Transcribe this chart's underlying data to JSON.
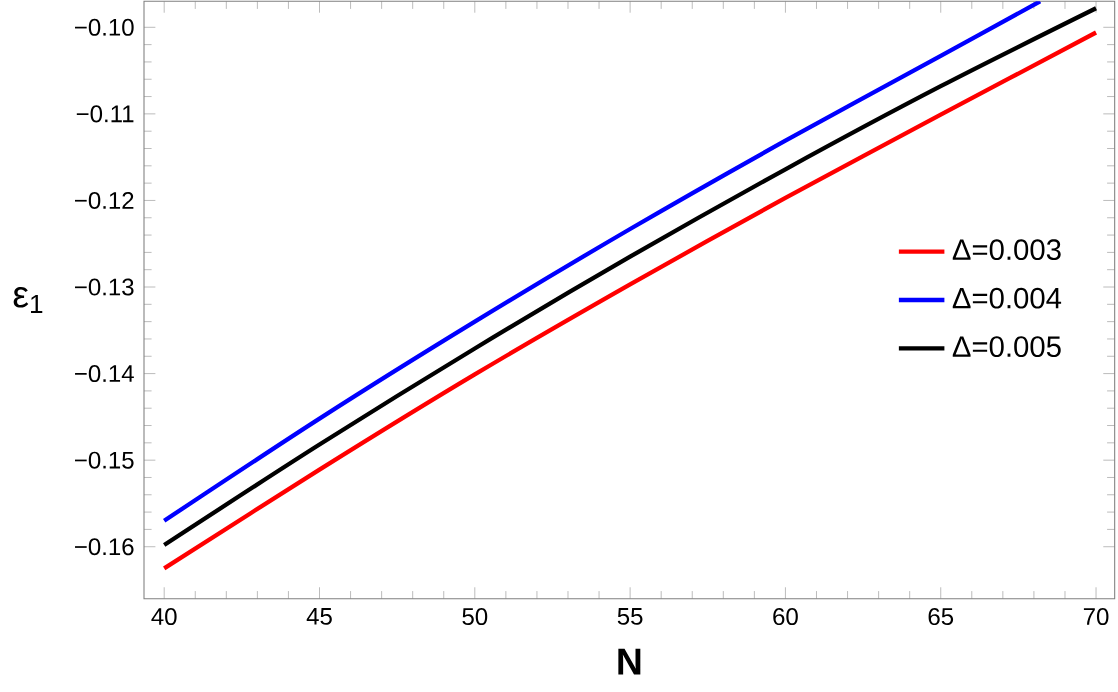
{
  "chart_data": {
    "type": "line",
    "xlabel": "N",
    "ylabel": "ε$_{1}$",
    "xlim": [
      39.35,
      70.6
    ],
    "ylim": [
      -0.166,
      -0.097
    ],
    "xticks": [
      40,
      45,
      50,
      55,
      60,
      65,
      70
    ],
    "yticks": [
      {
        "value": -0.16,
        "label": "−0.16"
      },
      {
        "value": -0.15,
        "label": "−0.15"
      },
      {
        "value": -0.14,
        "label": "−0.14"
      },
      {
        "value": -0.13,
        "label": "−0.13"
      },
      {
        "value": -0.12,
        "label": "−0.12"
      },
      {
        "value": -0.11,
        "label": "−0.11"
      },
      {
        "value": -0.1,
        "label": "−0.10"
      }
    ],
    "grid": false,
    "legend": "right",
    "marker": "none",
    "line_style": "solid",
    "series": [
      {
        "name": "Δ=0.003",
        "color": "#ff0000",
        "x": [
          40,
          45,
          50,
          55,
          60,
          65,
          70
        ],
        "values": [
          -0.1625,
          -0.1511,
          -0.1401,
          -0.1297,
          -0.1197,
          -0.1101,
          -0.1006
        ]
      },
      {
        "name": "Δ=0.004",
        "color": "#0000ff",
        "x": [
          40,
          45,
          50,
          55,
          60,
          65,
          68.2
        ],
        "values": [
          -0.157,
          -0.1452,
          -0.134,
          -0.1233,
          -0.1131,
          -0.1033,
          -0.097
        ]
      },
      {
        "name": "Δ=0.005",
        "color": "#000000",
        "x": [
          40,
          45,
          50,
          55,
          60,
          65,
          70
        ],
        "values": [
          -0.1598,
          -0.1482,
          -0.1371,
          -0.1265,
          -0.1164,
          -0.1068,
          -0.0978
        ]
      }
    ]
  }
}
